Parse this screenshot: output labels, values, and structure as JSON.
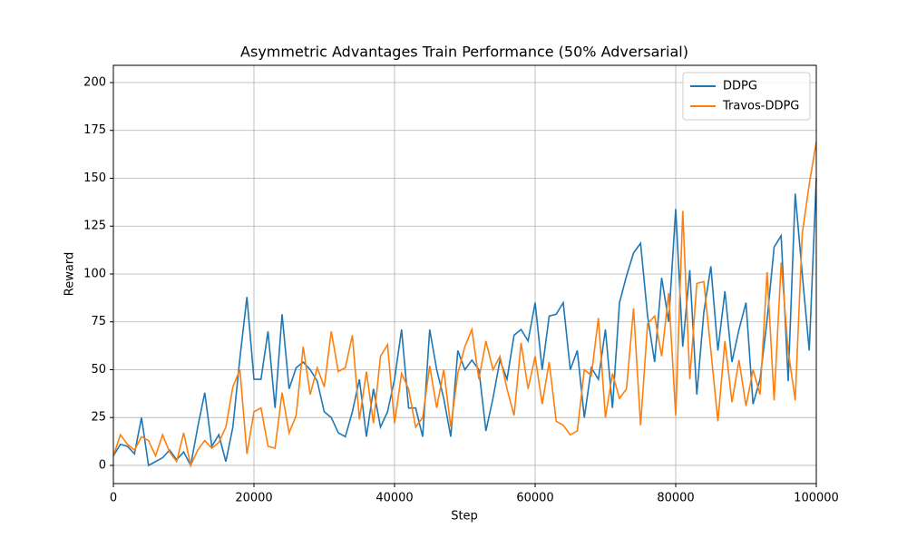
{
  "chart_data": {
    "type": "line",
    "title": "Asymmetric Advantages Train Performance (50% Adversarial)",
    "x_label": "Step",
    "y_label": "Reward",
    "x": [
      0,
      1000,
      2000,
      3000,
      4000,
      5000,
      6000,
      7000,
      8000,
      9000,
      10000,
      11000,
      12000,
      13000,
      14000,
      15000,
      16000,
      17000,
      18000,
      19000,
      20000,
      21000,
      22000,
      23000,
      24000,
      25000,
      26000,
      27000,
      28000,
      29000,
      30000,
      31000,
      32000,
      33000,
      34000,
      35000,
      36000,
      37000,
      38000,
      39000,
      40000,
      41000,
      42000,
      43000,
      44000,
      45000,
      46000,
      47000,
      48000,
      49000,
      50000,
      51000,
      52000,
      53000,
      54000,
      55000,
      56000,
      57000,
      58000,
      59000,
      60000,
      61000,
      62000,
      63000,
      64000,
      65000,
      66000,
      67000,
      68000,
      69000,
      70000,
      71000,
      72000,
      73000,
      74000,
      75000,
      76000,
      77000,
      78000,
      79000,
      80000,
      81000,
      82000,
      83000,
      84000,
      85000,
      86000,
      87000,
      88000,
      89000,
      90000,
      91000,
      92000,
      93000,
      94000,
      95000,
      96000,
      97000,
      98000,
      99000,
      100000
    ],
    "series": [
      {
        "name": "DDPG",
        "color": "#1f77b4",
        "values": [
          5,
          11,
          10,
          6,
          25,
          0,
          2,
          4,
          8,
          3,
          7,
          0,
          20,
          38,
          10,
          16,
          2,
          20,
          56,
          88,
          45,
          45,
          70,
          30,
          79,
          40,
          51,
          54,
          50,
          44,
          28,
          25,
          17,
          15,
          28,
          45,
          15,
          40,
          20,
          28,
          45,
          71,
          30,
          30,
          15,
          71,
          50,
          35,
          15,
          60,
          50,
          55,
          50,
          18,
          35,
          55,
          45,
          68,
          71,
          65,
          85,
          50,
          78,
          79,
          85,
          50,
          60,
          25,
          51,
          45,
          71,
          30,
          85,
          99,
          111,
          116,
          78,
          54,
          98,
          75,
          134,
          62,
          102,
          37,
          80,
          104,
          60,
          91,
          54,
          71,
          85,
          32,
          45,
          76,
          114,
          120,
          44,
          142,
          100,
          60,
          150
        ]
      },
      {
        "name": "Travos-DDPG",
        "color": "#ff7f0e",
        "values": [
          5,
          16,
          11,
          8,
          15,
          13,
          5,
          16,
          7,
          2,
          17,
          0,
          8,
          13,
          9,
          12,
          20,
          41,
          50,
          6,
          28,
          30,
          10,
          9,
          38,
          17,
          26,
          62,
          37,
          51,
          41,
          70,
          49,
          51,
          68,
          24,
          49,
          22,
          57,
          63,
          22,
          48,
          40,
          20,
          25,
          52,
          30,
          50,
          20,
          48,
          62,
          71,
          45,
          65,
          50,
          57,
          40,
          26,
          64,
          40,
          57,
          32,
          54,
          23,
          21,
          16,
          18,
          50,
          47,
          77,
          25,
          48,
          35,
          40,
          82,
          21,
          74,
          78,
          57,
          90,
          26,
          133,
          45,
          95,
          96,
          60,
          23,
          65,
          33,
          55,
          31,
          50,
          37,
          101,
          34,
          106,
          60,
          34,
          121,
          147,
          169
        ]
      }
    ],
    "xlim": [
      0,
      100000
    ],
    "ylim": [
      -9.5,
      209
    ],
    "xticks": [
      0,
      20000,
      40000,
      60000,
      80000,
      100000
    ],
    "yticks": [
      0,
      25,
      50,
      75,
      100,
      125,
      150,
      175,
      200
    ],
    "grid": true,
    "legend": "upper right"
  }
}
